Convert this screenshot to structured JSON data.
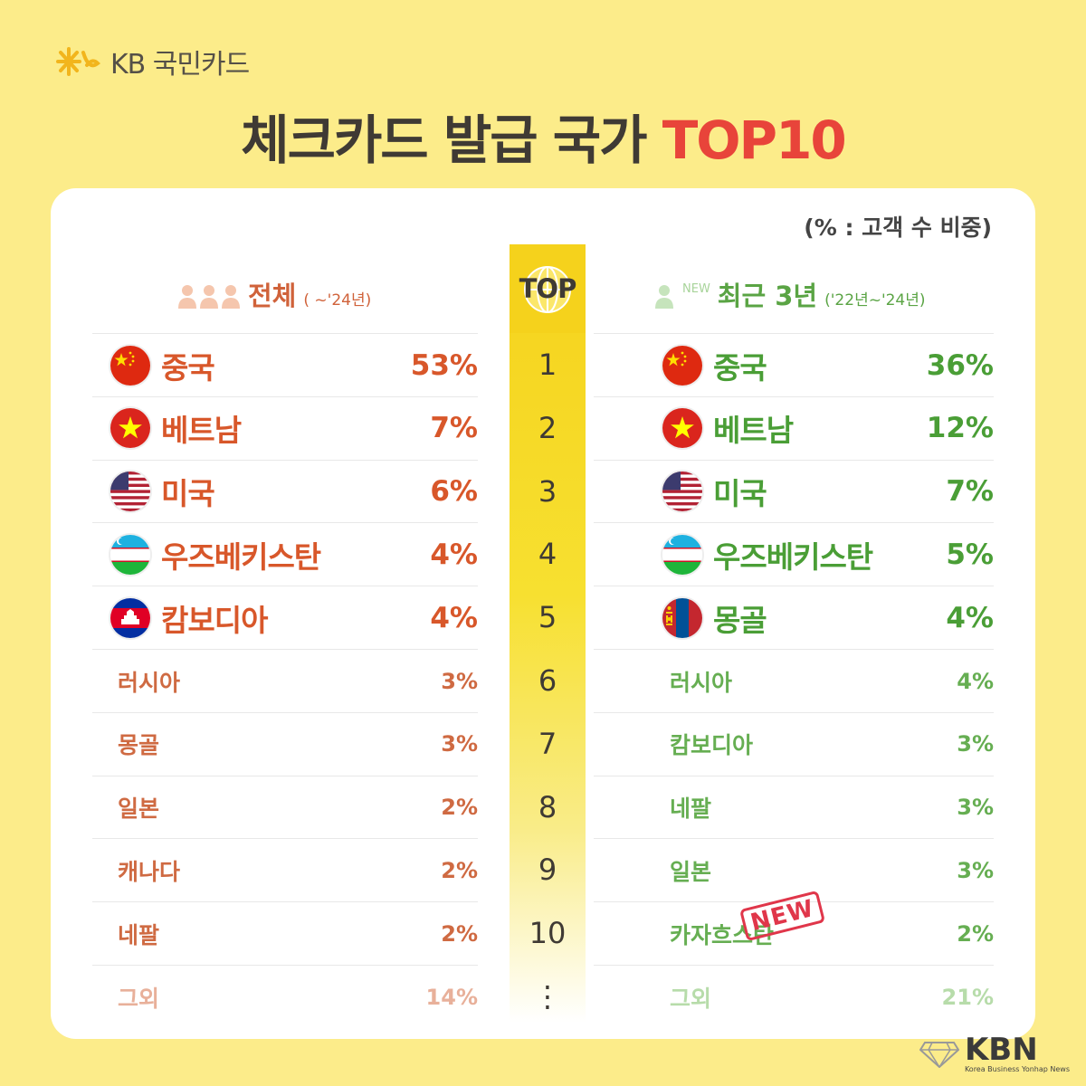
{
  "brand": {
    "logo_text": "KB 국민카드"
  },
  "title": {
    "main": "체크카드 발급 국가 ",
    "accent": "TOP10",
    "accent_color": "#e8443a"
  },
  "note": "(% : 고객 수 비중)",
  "top_label": "TOP",
  "left_header": {
    "label": "전체",
    "sub": "( ~'24년)"
  },
  "right_header": {
    "new": "NEW",
    "label": "최근 3년",
    "sub": "('22년~'24년)"
  },
  "ranks": [
    "1",
    "2",
    "3",
    "4",
    "5",
    "6",
    "7",
    "8",
    "9",
    "10",
    "⋮"
  ],
  "left_rows": [
    {
      "name": "중국",
      "pct": "53%",
      "flag": "china-flag"
    },
    {
      "name": "베트남",
      "pct": "7%",
      "flag": "vietnam-flag"
    },
    {
      "name": "미국",
      "pct": "6%",
      "flag": "usa-flag"
    },
    {
      "name": "우즈베키스탄",
      "pct": "4%",
      "flag": "uzbekistan-flag"
    },
    {
      "name": "캄보디아",
      "pct": "4%",
      "flag": "cambodia-flag"
    },
    {
      "name": "러시아",
      "pct": "3%"
    },
    {
      "name": "몽골",
      "pct": "3%"
    },
    {
      "name": "일본",
      "pct": "2%"
    },
    {
      "name": "캐나다",
      "pct": "2%"
    },
    {
      "name": "네팔",
      "pct": "2%"
    },
    {
      "name": "그외",
      "pct": "14%"
    }
  ],
  "right_rows": [
    {
      "name": "중국",
      "pct": "36%",
      "flag": "china-flag"
    },
    {
      "name": "베트남",
      "pct": "12%",
      "flag": "vietnam-flag"
    },
    {
      "name": "미국",
      "pct": "7%",
      "flag": "usa-flag"
    },
    {
      "name": "우즈베키스탄",
      "pct": "5%",
      "flag": "uzbekistan-flag"
    },
    {
      "name": "몽골",
      "pct": "4%",
      "flag": "mongolia-flag"
    },
    {
      "name": "러시아",
      "pct": "4%"
    },
    {
      "name": "캄보디아",
      "pct": "3%"
    },
    {
      "name": "네팔",
      "pct": "3%"
    },
    {
      "name": "일본",
      "pct": "3%"
    },
    {
      "name": "카자흐스탄",
      "pct": "2%"
    },
    {
      "name": "그외",
      "pct": "21%"
    }
  ],
  "new_stamp": "NEW",
  "watermark": {
    "text": "KBN",
    "sub": "Korea Business Yonhap News"
  }
}
